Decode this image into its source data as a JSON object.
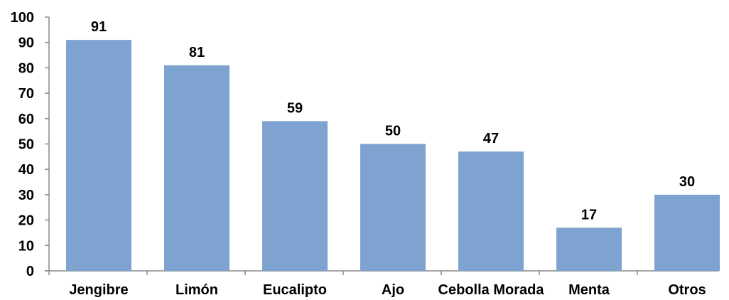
{
  "chart_data": {
    "type": "bar",
    "categories": [
      "Jengibre",
      "Limón",
      "Eucalipto",
      "Ajo",
      "Cebolla Morada",
      "Menta",
      "Otros"
    ],
    "values": [
      91,
      81,
      59,
      50,
      47,
      17,
      30
    ],
    "data_labels": [
      "91",
      "81",
      "59",
      "50",
      "47",
      "17",
      "30"
    ],
    "y_ticks": [
      "0",
      "10",
      "20",
      "30",
      "40",
      "50",
      "60",
      "70",
      "80",
      "90",
      "100"
    ],
    "title": "",
    "xlabel": "",
    "ylabel": "",
    "ylim": [
      0,
      100
    ],
    "grid": false,
    "legend": "none",
    "bar_color": "#7ea3d0",
    "axis_color": "#888888"
  }
}
